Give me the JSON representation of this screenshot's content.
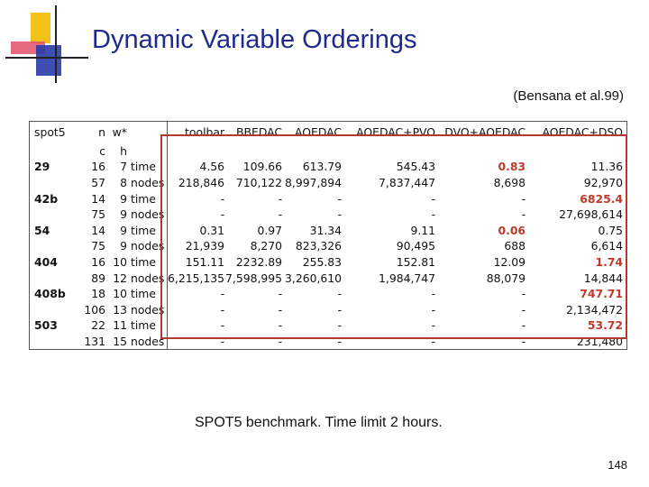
{
  "title": "Dynamic Variable Orderings",
  "citation": "(Bensana et al.99)",
  "table": {
    "headers": [
      "spot5",
      "n",
      "w*",
      "",
      "toolbar",
      "BBEDAC",
      "AOEDAC",
      "AOEDAC+PVO",
      "DVO+AOEDAC",
      "AOEDAC+DSO"
    ],
    "subheaders": [
      "",
      "c",
      "h",
      "",
      "",
      "",
      "",
      "",
      "",
      ""
    ],
    "rows": [
      [
        "29",
        "16",
        "7",
        "time",
        "4.56",
        "109.66",
        "613.79",
        "545.43",
        "0.83",
        "11.36"
      ],
      [
        "",
        "57",
        "8",
        "nodes",
        "218,846",
        "710,122",
        "8,997,894",
        "7,837,447",
        "8,698",
        "92,970"
      ],
      [
        "42b",
        "14",
        "9",
        "time",
        "-",
        "-",
        "-",
        "-",
        "-",
        "6825.4"
      ],
      [
        "",
        "75",
        "9",
        "nodes",
        "-",
        "-",
        "-",
        "-",
        "-",
        "27,698,614"
      ],
      [
        "54",
        "14",
        "9",
        "time",
        "0.31",
        "0.97",
        "31.34",
        "9.11",
        "0.06",
        "0.75"
      ],
      [
        "",
        "75",
        "9",
        "nodes",
        "21,939",
        "8,270",
        "823,326",
        "90,495",
        "688",
        "6,614"
      ],
      [
        "404",
        "16",
        "10",
        "time",
        "151.11",
        "2232.89",
        "255.83",
        "152.81",
        "12.09",
        "1.74"
      ],
      [
        "",
        "89",
        "12",
        "nodes",
        "6,215,135",
        "7,598,995",
        "3,260,610",
        "1,984,747",
        "88,079",
        "14,844"
      ],
      [
        "408b",
        "18",
        "10",
        "time",
        "-",
        "-",
        "-",
        "-",
        "-",
        "747.71"
      ],
      [
        "",
        "106",
        "13",
        "nodes",
        "-",
        "-",
        "-",
        "-",
        "-",
        "2,134,472"
      ],
      [
        "503",
        "22",
        "11",
        "time",
        "-",
        "-",
        "-",
        "-",
        "-",
        "53.72"
      ],
      [
        "",
        "131",
        "15",
        "nodes",
        "-",
        "-",
        "-",
        "-",
        "-",
        "231,480"
      ]
    ],
    "highlight_color": "#c0392b",
    "highlighted_cells": [
      [
        0,
        8
      ],
      [
        2,
        9
      ],
      [
        4,
        8
      ],
      [
        6,
        9
      ],
      [
        8,
        9
      ],
      [
        10,
        9
      ]
    ]
  },
  "caption": "SPOT5 benchmark. Time limit 2 hours.",
  "page_number": "148",
  "colors": {
    "title": "#1f2a8c",
    "box": "#b03a2e",
    "logo_yellow": "#f2c21b",
    "logo_red": "#e0506a",
    "logo_blue": "#2a3ba8"
  }
}
